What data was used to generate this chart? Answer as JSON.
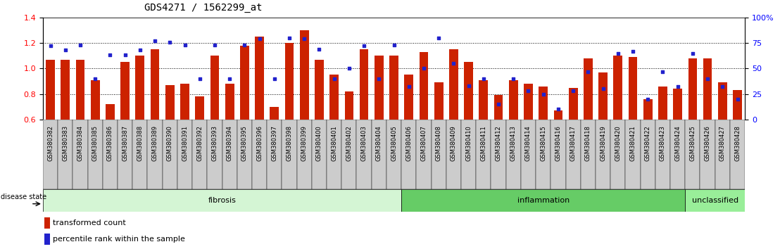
{
  "title": "GDS4271 / 1562299_at",
  "samples": [
    "GSM380382",
    "GSM380383",
    "GSM380384",
    "GSM380385",
    "GSM380386",
    "GSM380387",
    "GSM380388",
    "GSM380389",
    "GSM380390",
    "GSM380391",
    "GSM380392",
    "GSM380393",
    "GSM380394",
    "GSM380395",
    "GSM380396",
    "GSM380397",
    "GSM380398",
    "GSM380399",
    "GSM380400",
    "GSM380401",
    "GSM380402",
    "GSM380403",
    "GSM380404",
    "GSM380405",
    "GSM380406",
    "GSM380407",
    "GSM380408",
    "GSM380409",
    "GSM380410",
    "GSM380411",
    "GSM380412",
    "GSM380413",
    "GSM380414",
    "GSM380415",
    "GSM380416",
    "GSM380417",
    "GSM380418",
    "GSM380419",
    "GSM380420",
    "GSM380421",
    "GSM380422",
    "GSM380423",
    "GSM380424",
    "GSM380425",
    "GSM380426",
    "GSM380427",
    "GSM380428"
  ],
  "transformed_count": [
    1.07,
    1.07,
    1.07,
    0.91,
    0.72,
    1.05,
    1.1,
    1.15,
    0.87,
    0.88,
    0.78,
    1.1,
    0.88,
    1.18,
    1.25,
    0.7,
    1.2,
    1.3,
    1.07,
    0.95,
    0.82,
    1.15,
    1.1,
    1.1,
    0.95,
    1.13,
    0.89,
    1.15,
    1.05,
    0.91,
    0.79,
    0.91,
    0.88,
    0.86,
    0.67,
    0.85,
    1.08,
    0.97,
    1.1,
    1.09,
    0.76,
    0.86,
    0.84,
    1.08,
    1.08,
    0.89,
    0.83
  ],
  "percentile_rank": [
    72,
    68,
    73,
    40,
    63,
    63,
    68,
    77,
    76,
    73,
    40,
    73,
    40,
    73,
    79,
    40,
    80,
    79,
    69,
    40,
    50,
    72,
    40,
    73,
    32,
    50,
    80,
    55,
    33,
    40,
    15,
    40,
    28,
    25,
    10,
    28,
    47,
    30,
    65,
    67,
    20,
    47,
    32,
    65,
    40,
    32,
    20
  ],
  "groups": [
    {
      "label": "fibrosis",
      "start": 0,
      "end": 23,
      "color": "#d4f5d4"
    },
    {
      "label": "inflammation",
      "start": 24,
      "end": 42,
      "color": "#66cc66"
    },
    {
      "label": "unclassified",
      "start": 43,
      "end": 46,
      "color": "#99ee99"
    }
  ],
  "ylim_left": [
    0.6,
    1.4
  ],
  "ylim_right": [
    0,
    100
  ],
  "bar_color": "#cc2200",
  "dot_color": "#2222cc",
  "title_fontsize": 10,
  "tick_fontsize": 6,
  "legend_fontsize": 8,
  "label_bg_color": "#cccccc",
  "group_label_fibrosis_color": "#d4f5d4",
  "group_label_inflammation_color": "#66cc66",
  "group_label_unclassified_color": "#99ee99"
}
